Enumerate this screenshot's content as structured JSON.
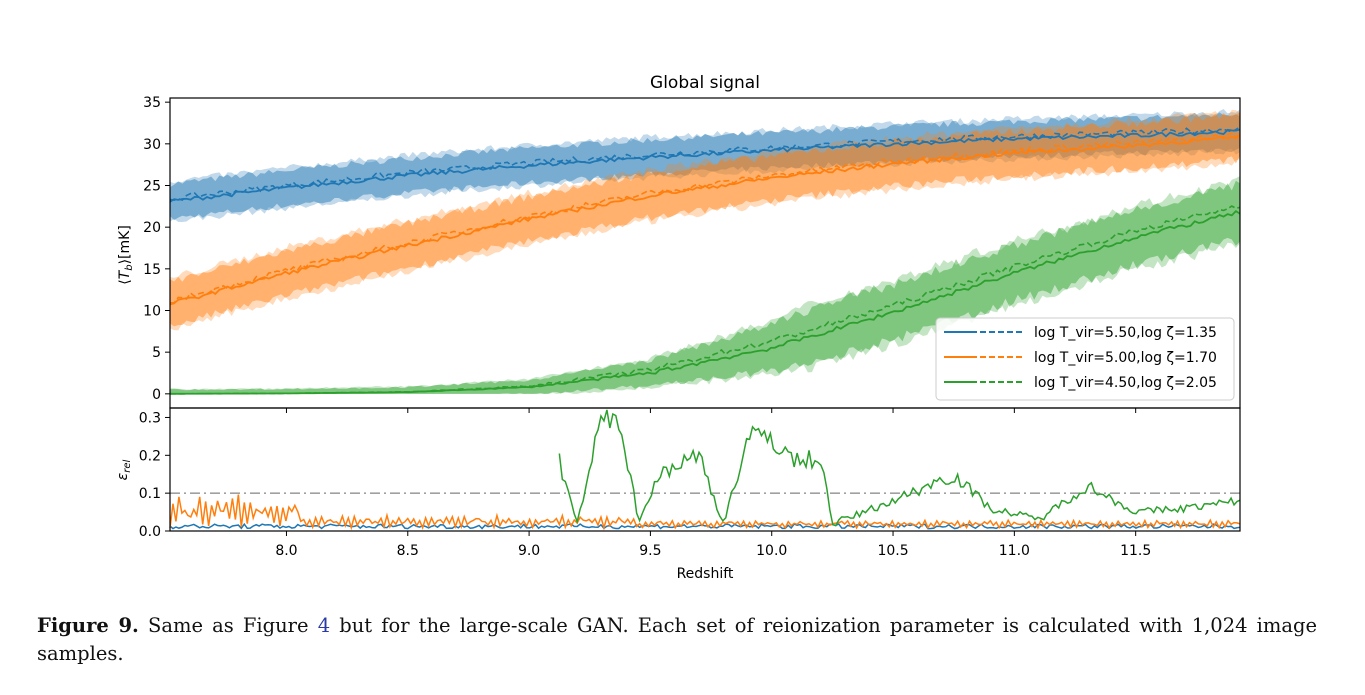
{
  "chart_data": [
    {
      "type": "area",
      "title": "Global signal",
      "xlabel": "",
      "ylabel": "⟨T_b⟩[mK]",
      "xlim": [
        7.52,
        11.93
      ],
      "ylim": [
        -1.7,
        35.5
      ],
      "xticks": [
        8.0,
        8.5,
        9.0,
        9.5,
        10.0,
        10.5,
        11.0,
        11.5
      ],
      "yticks": [
        0,
        5,
        10,
        15,
        20,
        25,
        30,
        35
      ],
      "ytick_labels": [
        "0",
        "5",
        "10",
        "15",
        "20",
        "25",
        "30",
        "35"
      ],
      "legend_position": "lower-right",
      "line_styles": [
        "solid (simulation mean)",
        "dashed (GAN mean)"
      ],
      "series": [
        {
          "name": "log T_vir=5.50,log ζ=1.35",
          "color": "#1f77b4",
          "x": [
            7.52,
            8.0,
            8.5,
            9.0,
            9.5,
            10.0,
            10.5,
            11.0,
            11.5,
            11.93
          ],
          "mean": [
            23.1,
            24.7,
            26.2,
            27.4,
            28.4,
            29.2,
            30.0,
            30.6,
            31.0,
            31.5
          ],
          "band": 2.2
        },
        {
          "name": "log T_vir=5.00,log ζ=1.70",
          "color": "#ff7f0e",
          "x": [
            7.52,
            8.0,
            8.5,
            9.0,
            9.5,
            10.0,
            10.5,
            11.0,
            11.5,
            11.93
          ],
          "mean": [
            10.8,
            14.5,
            17.8,
            21.0,
            23.8,
            25.9,
            27.6,
            28.9,
            29.8,
            30.8
          ],
          "band": 2.8
        },
        {
          "name": "log T_vir=4.50,log ζ=2.05",
          "color": "#2ca02c",
          "x": [
            7.52,
            8.0,
            8.5,
            9.0,
            9.5,
            10.0,
            10.5,
            11.0,
            11.5,
            11.93
          ],
          "mean": [
            0.0,
            0.05,
            0.2,
            0.8,
            2.5,
            5.5,
            9.8,
            14.5,
            18.8,
            21.8
          ],
          "band": 3.5
        }
      ]
    },
    {
      "type": "line",
      "title": "",
      "xlabel": "Redshift",
      "ylabel": "ε_rel",
      "xlim": [
        7.52,
        11.93
      ],
      "ylim": [
        0.0,
        0.325
      ],
      "xticks": [
        8.0,
        8.5,
        9.0,
        9.5,
        10.0,
        10.5,
        11.0,
        11.5
      ],
      "xtick_labels": [
        "8.0",
        "8.5",
        "9.0",
        "9.5",
        "10.0",
        "10.5",
        "11.0",
        "11.5"
      ],
      "yticks": [
        0.0,
        0.1,
        0.2,
        0.3
      ],
      "ytick_labels": [
        "0.0",
        "0.1",
        "0.2",
        "0.3"
      ],
      "reference_line": {
        "y": 0.1,
        "style": "dash-dot",
        "color": "#a0a0a0"
      },
      "series": [
        {
          "name": "log T_vir=5.50,log ζ=1.35",
          "color": "#1f77b4",
          "level": 0.01,
          "amplitude": 0.012
        },
        {
          "name": "log T_vir=5.00,log ζ=1.70",
          "color": "#ff7f0e",
          "level": 0.03,
          "amplitude": 0.06
        },
        {
          "name": "log T_vir=4.50,log ζ=2.05",
          "color": "#2ca02c",
          "x_start": 9.12,
          "x": [
            9.12,
            9.2,
            9.3,
            9.37,
            9.45,
            9.55,
            9.7,
            9.8,
            9.9,
            10.0,
            10.1,
            10.2,
            10.25,
            10.3,
            10.5,
            10.75,
            10.9,
            11.1,
            11.3,
            11.5,
            11.7,
            11.93
          ],
          "y": [
            0.19,
            0.02,
            0.3,
            0.31,
            0.03,
            0.16,
            0.2,
            0.02,
            0.24,
            0.25,
            0.18,
            0.2,
            0.02,
            0.03,
            0.08,
            0.15,
            0.06,
            0.03,
            0.12,
            0.05,
            0.06,
            0.08
          ]
        }
      ]
    }
  ],
  "caption": {
    "lead": "Figure 9.",
    "text_before_ref": "Same as Figure",
    "ref": "4",
    "text_after_ref": "but for the large-scale GAN. Each set of reionization parameter is calculated with 1,024 image samples."
  }
}
